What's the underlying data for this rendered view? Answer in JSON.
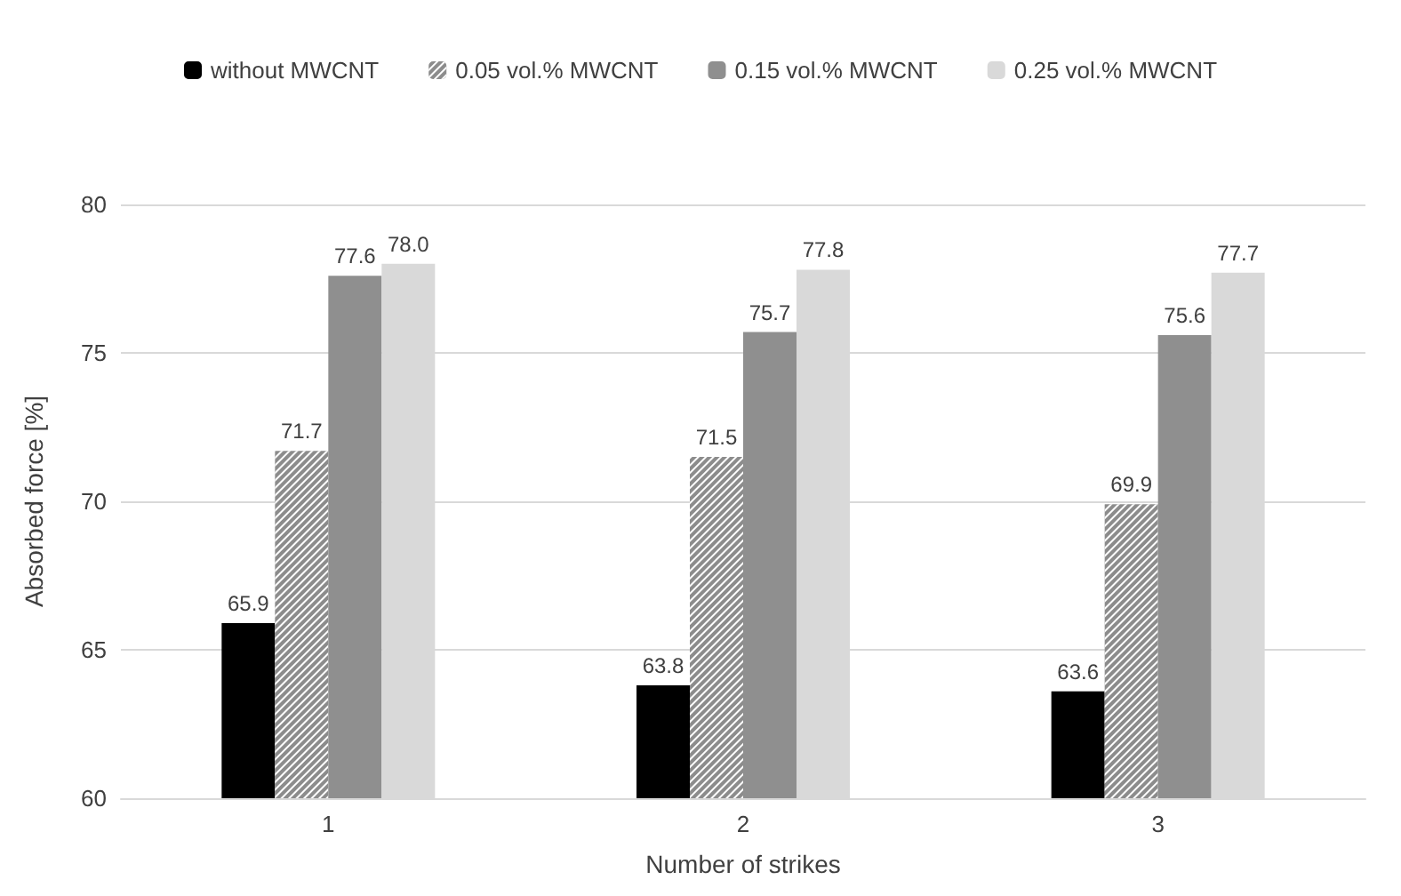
{
  "chart_data": {
    "type": "bar",
    "xlabel": "Number of strikes",
    "ylabel": "Absorbed force [%]",
    "categories": [
      "1",
      "2",
      "3"
    ],
    "series": [
      {
        "name": "without MWCNT",
        "color": "#000000",
        "values": [
          65.9,
          63.8,
          63.6
        ],
        "value_labels": [
          "65.9",
          "63.8",
          "63.6"
        ]
      },
      {
        "name": "0.05 vol.% MWCNT",
        "color": "#8c8c8c",
        "values": [
          71.7,
          71.5,
          69.9
        ],
        "value_labels": [
          "71.7",
          "71.5",
          "69.9"
        ]
      },
      {
        "name": "0.15 vol.% MWCNT",
        "color": "#8f8f8f",
        "values": [
          77.6,
          75.7,
          75.6
        ],
        "value_labels": [
          "77.6",
          "75.7",
          "75.6"
        ]
      },
      {
        "name": "0.25 vol.% MWCNT",
        "color": "#d9d9d9",
        "values": [
          78,
          77.8,
          77.7
        ],
        "value_labels": [
          "78.0",
          "77.8",
          "77.7"
        ]
      }
    ],
    "ylim": [
      60,
      80
    ],
    "yticks": [
      60,
      65,
      70,
      75,
      80
    ],
    "grid": "y",
    "legend": "top"
  }
}
